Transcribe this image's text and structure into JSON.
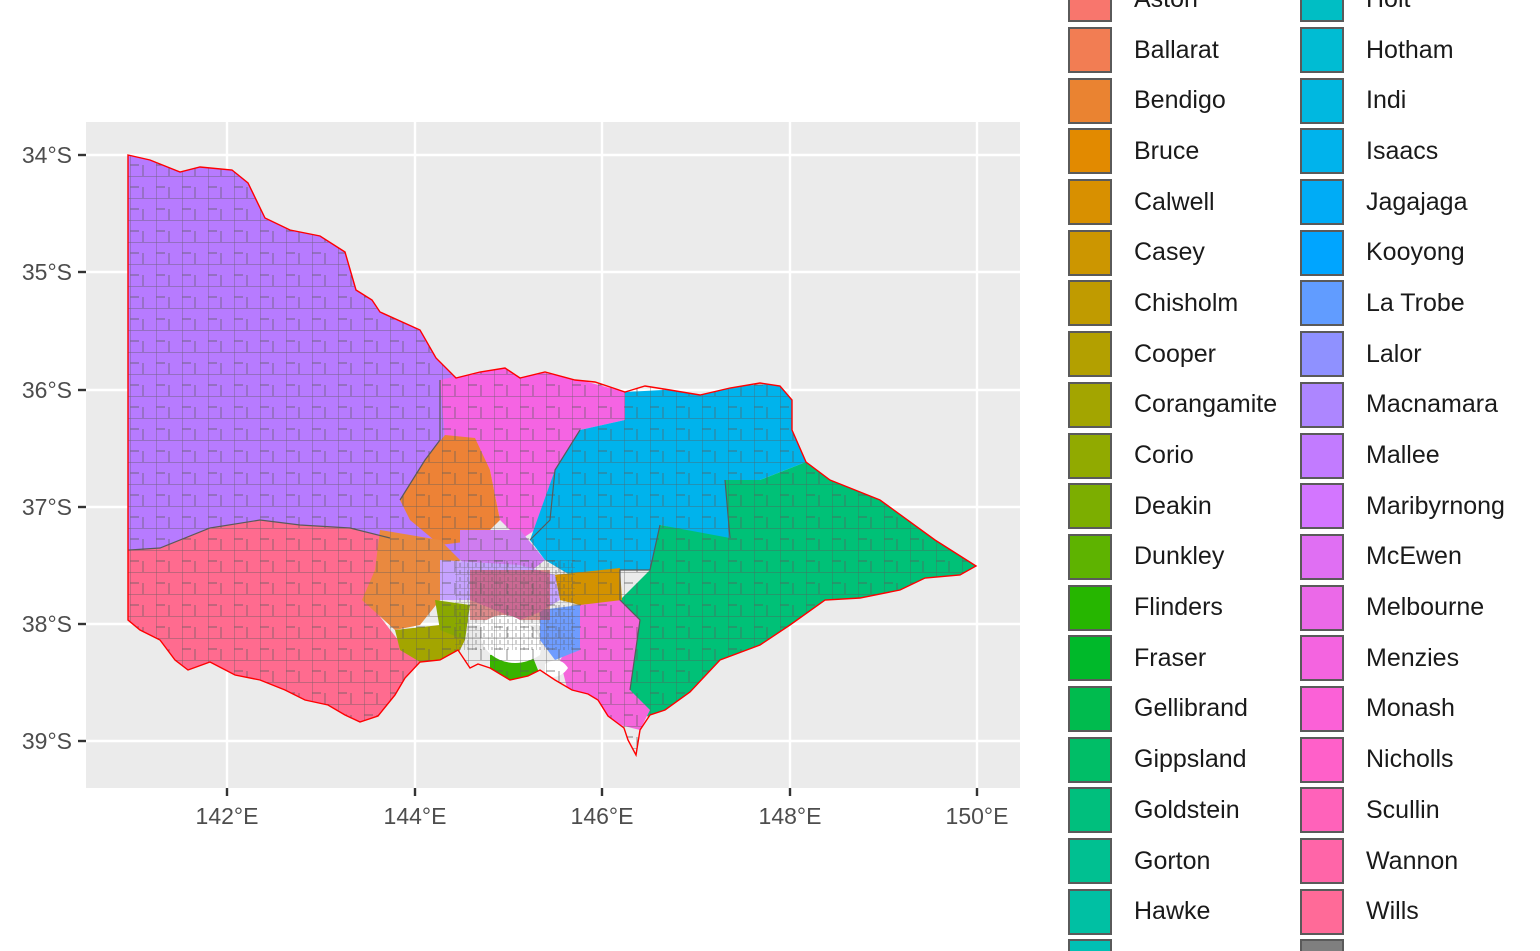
{
  "map": {
    "x_ticks": [
      "142°E",
      "144°E",
      "146°E",
      "148°E",
      "150°E"
    ],
    "y_ticks": [
      "34°S",
      "35°S",
      "36°S",
      "37°S",
      "38°S",
      "39°S"
    ],
    "colors": {
      "panel": "#ebebeb",
      "grid": "#ffffff",
      "mallee": "#b77bff",
      "wannon": "#ff6c91",
      "indi": "#00b4ef",
      "gippsland": "#00c176",
      "nicholls": "#f564e3",
      "bendigo": "#ec823c",
      "ballarat": "#e8853b",
      "corangamite": "#a3a500",
      "flinders": "#39b600",
      "casey": "#d39200",
      "mcewen": "#d176f9",
      "monash": "#fc61d5",
      "la_trobe": "#619cff",
      "border": "#ff0000",
      "lines": "#595959"
    }
  },
  "legend": {
    "col1": [
      {
        "label": "Aston",
        "color": "#f8766d"
      },
      {
        "label": "Ballarat",
        "color": "#f27d53"
      },
      {
        "label": "Bendigo",
        "color": "#ea8331"
      },
      {
        "label": "Bruce",
        "color": "#e28a00"
      },
      {
        "label": "Calwell",
        "color": "#d89000"
      },
      {
        "label": "Casey",
        "color": "#cc9600"
      },
      {
        "label": "Chisholm",
        "color": "#c09b00"
      },
      {
        "label": "Cooper",
        "color": "#b3a000"
      },
      {
        "label": "Corangamite",
        "color": "#a3a500"
      },
      {
        "label": "Corio",
        "color": "#91aa00"
      },
      {
        "label": "Deakin",
        "color": "#7cae00"
      },
      {
        "label": "Dunkley",
        "color": "#5eb300"
      },
      {
        "label": "Flinders",
        "color": "#26b600"
      },
      {
        "label": "Fraser",
        "color": "#00b92a"
      },
      {
        "label": "Gellibrand",
        "color": "#00bb4e"
      },
      {
        "label": "Gippsland",
        "color": "#00be67"
      },
      {
        "label": "Goldstein",
        "color": "#00bf7d"
      },
      {
        "label": "Gorton",
        "color": "#00c091"
      },
      {
        "label": "Hawke",
        "color": "#00c0a3"
      },
      {
        "label": "",
        "color": "#00c0b4"
      }
    ],
    "col2": [
      {
        "label": "Holt",
        "color": "#00bec4"
      },
      {
        "label": "Hotham",
        "color": "#00bcd3"
      },
      {
        "label": "Indi",
        "color": "#00b8e0"
      },
      {
        "label": "Isaacs",
        "color": "#00b3ec"
      },
      {
        "label": "Jagajaga",
        "color": "#00acf6"
      },
      {
        "label": "Kooyong",
        "color": "#00a5ff"
      },
      {
        "label": "La Trobe",
        "color": "#619cff"
      },
      {
        "label": "Lalor",
        "color": "#8f91ff"
      },
      {
        "label": "Macnamara",
        "color": "#ad86ff"
      },
      {
        "label": "Mallee",
        "color": "#c27bff"
      },
      {
        "label": "Maribyrnong",
        "color": "#d376ff"
      },
      {
        "label": "McEwen",
        "color": "#e06ff3"
      },
      {
        "label": "Melbourne",
        "color": "#eb69e8"
      },
      {
        "label": "Menzies",
        "color": "#f464e0"
      },
      {
        "label": "Monash",
        "color": "#fb61d7"
      },
      {
        "label": "Nicholls",
        "color": "#ff60c9"
      },
      {
        "label": "Scullin",
        "color": "#ff62ba"
      },
      {
        "label": "Wannon",
        "color": "#ff65a8"
      },
      {
        "label": "Wills",
        "color": "#ff6a98"
      },
      {
        "label": "",
        "color": "#7f7f7f"
      }
    ]
  }
}
